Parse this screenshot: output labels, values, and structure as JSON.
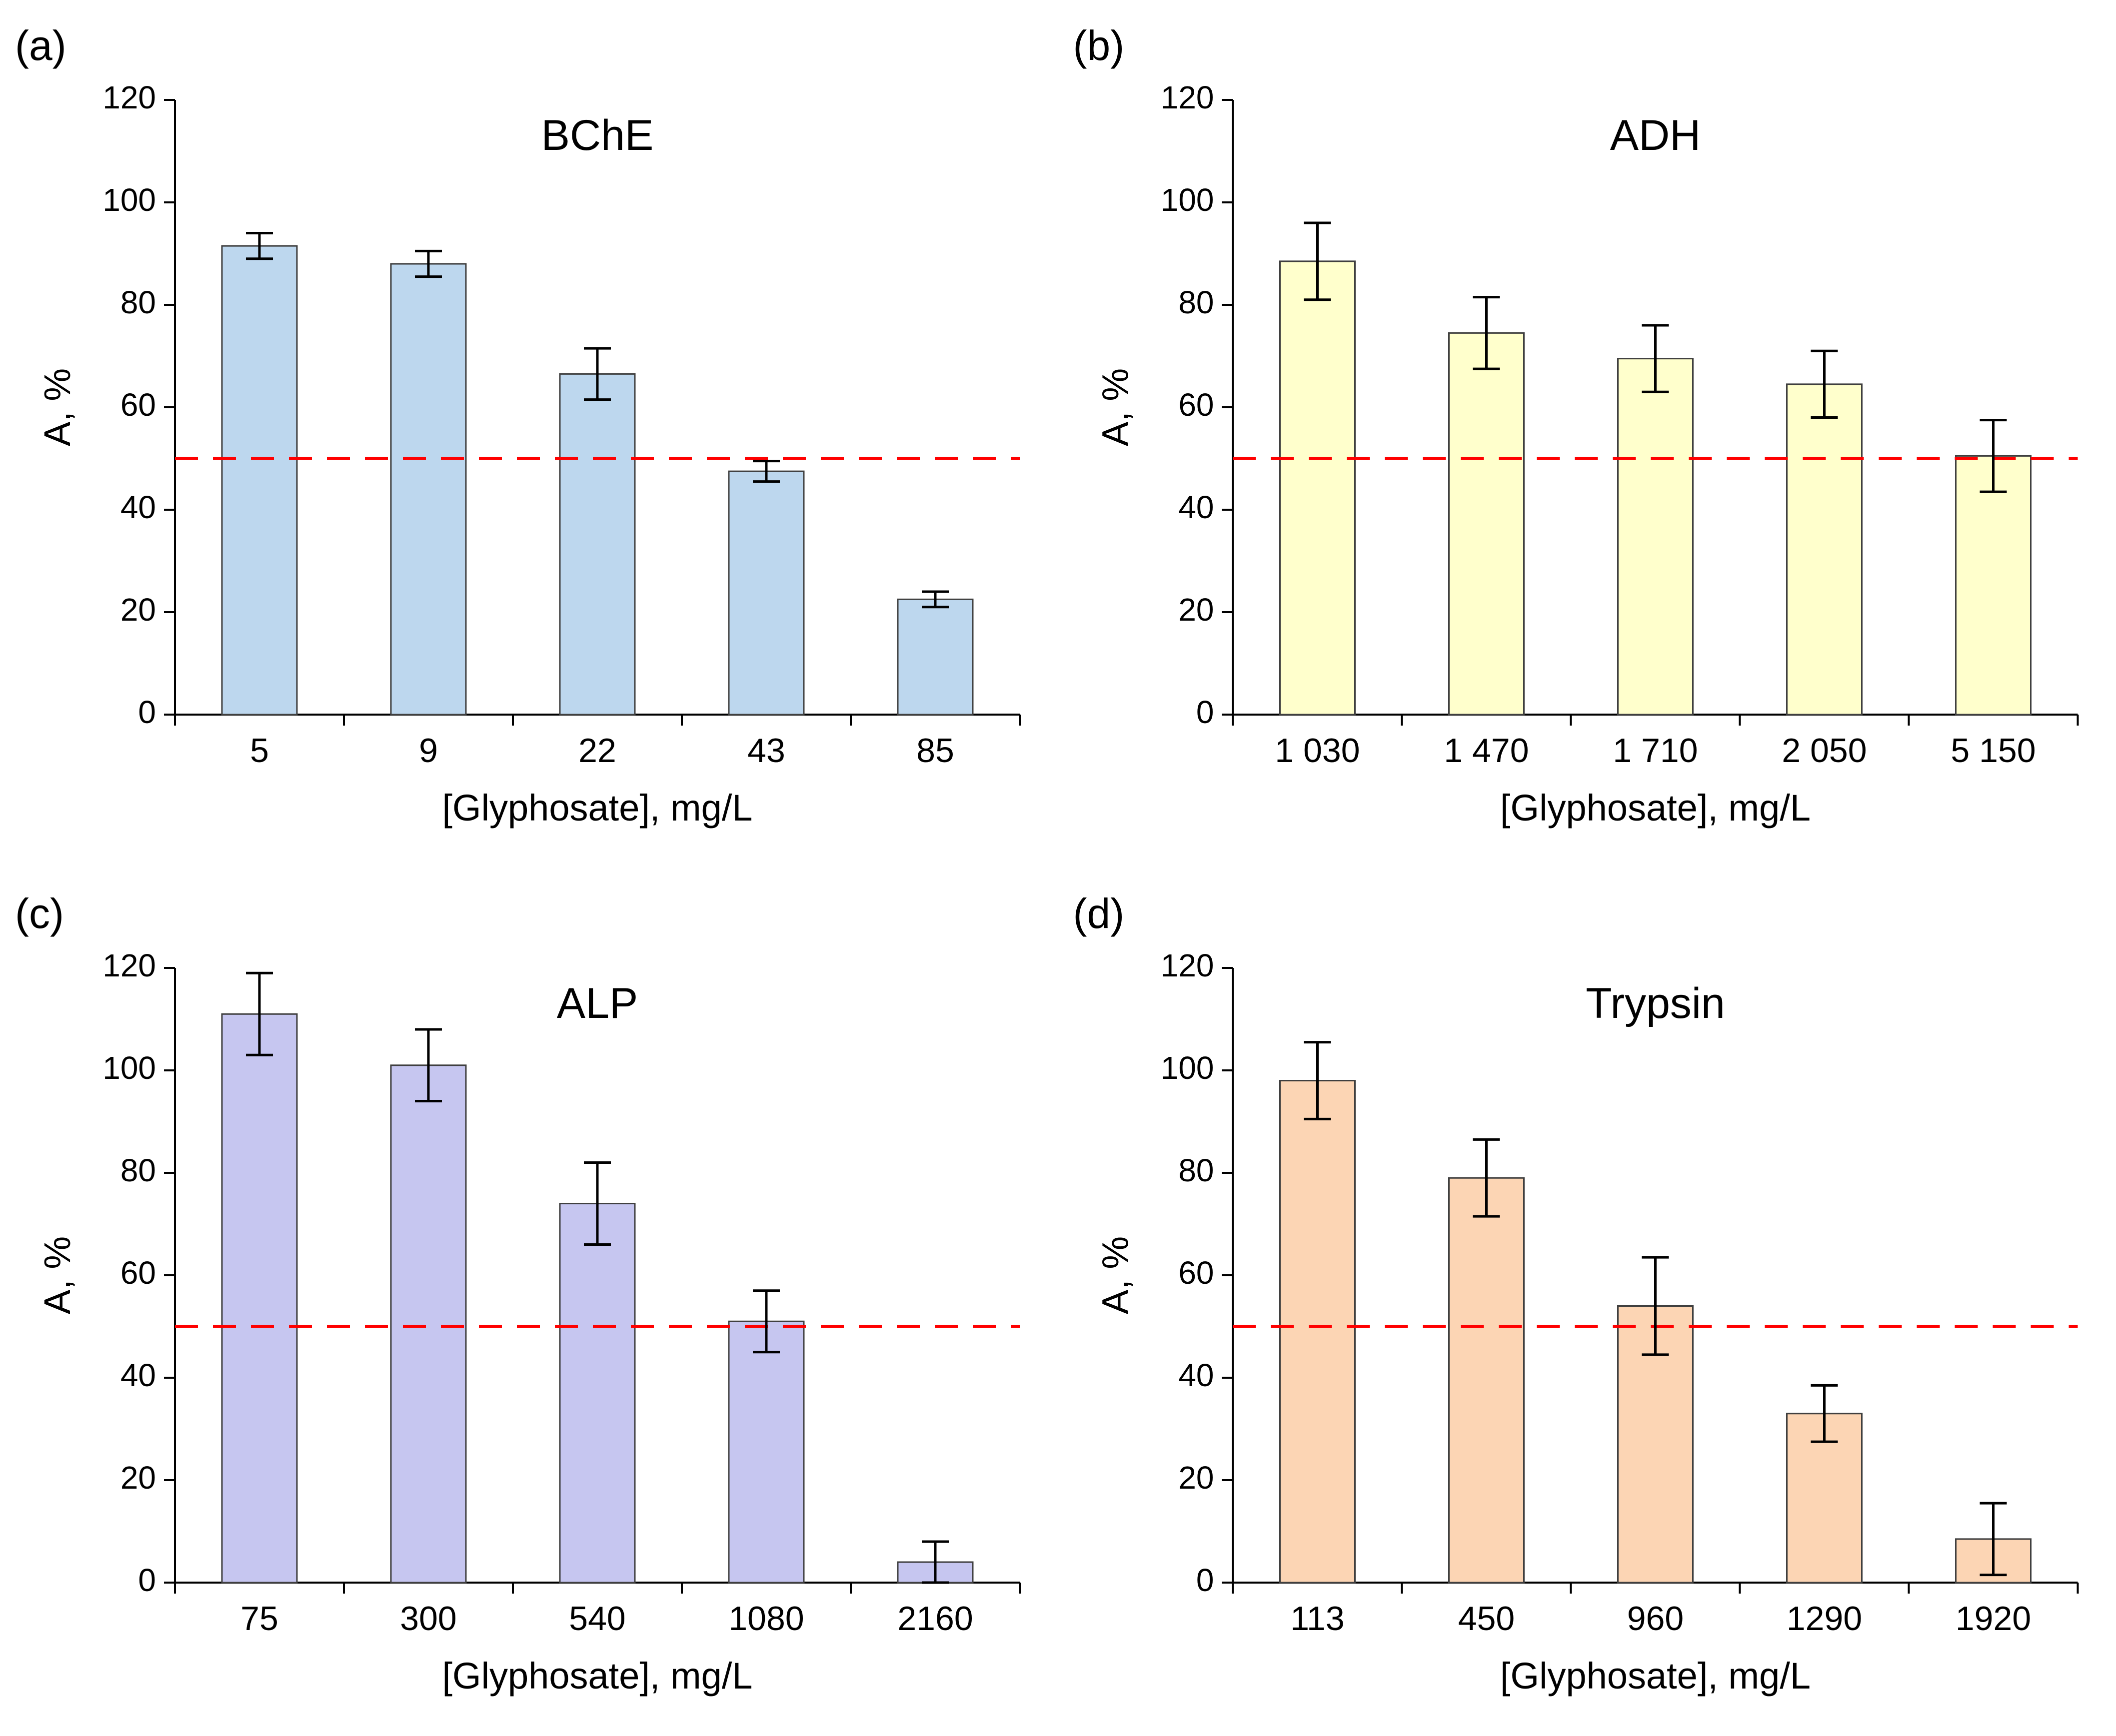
{
  "figure": {
    "background": "#ffffff",
    "accent_title_color": "#2233cc",
    "reference_line_color": "#ff0000",
    "axis_color": "#000000"
  },
  "chart_data": [
    {
      "type": "bar",
      "panel_label": "(a)",
      "title": "BChE",
      "title_color": "#2233cc",
      "categories": [
        "5",
        "9",
        "22",
        "43",
        "85"
      ],
      "values": [
        91.5,
        88,
        66.5,
        47.5,
        22.5
      ],
      "errors": [
        2.5,
        2.5,
        5,
        2,
        1.5
      ],
      "xlabel": "[Glyphosate], mg/L",
      "ylabel": "A, %",
      "ylim": [
        0,
        120
      ],
      "ytick_step": 20,
      "grid": false,
      "legend": "none",
      "bar_fill": "#BDD7EE",
      "bar_stroke": "#3f3f3f",
      "ref_line": {
        "y": 50,
        "color": "#ff0000",
        "style": "dashed"
      }
    },
    {
      "type": "bar",
      "panel_label": "(b)",
      "title": "ADH",
      "title_color": "#2233cc",
      "categories": [
        "1 030",
        "1 470",
        "1 710",
        "2 050",
        "5 150"
      ],
      "values": [
        88.5,
        74.5,
        69.5,
        64.5,
        50.5
      ],
      "errors": [
        7.5,
        7,
        6.5,
        6.5,
        7
      ],
      "xlabel": "[Glyphosate], mg/L",
      "ylabel": "A, %",
      "ylim": [
        0,
        120
      ],
      "ytick_step": 20,
      "grid": false,
      "legend": "none",
      "bar_fill": "#FFFFCC",
      "bar_stroke": "#3f3f3f",
      "ref_line": {
        "y": 50,
        "color": "#ff0000",
        "style": "dashed"
      }
    },
    {
      "type": "bar",
      "panel_label": "(c)",
      "title": "ALP",
      "title_color": "#2233cc",
      "categories": [
        "75",
        "300",
        "540",
        "1080",
        "2160"
      ],
      "values": [
        111,
        101,
        74,
        51,
        4
      ],
      "errors": [
        8,
        7,
        8,
        6,
        4
      ],
      "xlabel": "[Glyphosate], mg/L",
      "ylabel": "A, %",
      "ylim": [
        0,
        120
      ],
      "ytick_step": 20,
      "grid": false,
      "legend": "none",
      "bar_fill": "#C6C6F0",
      "bar_stroke": "#3f3f3f",
      "ref_line": {
        "y": 50,
        "color": "#ff0000",
        "style": "dashed"
      }
    },
    {
      "type": "bar",
      "panel_label": "(d)",
      "title": "Trypsin",
      "title_color": "#2233cc",
      "categories": [
        "113",
        "450",
        "960",
        "1290",
        "1920"
      ],
      "values": [
        98,
        79,
        54,
        33,
        8.5
      ],
      "errors": [
        7.5,
        7.5,
        9.5,
        5.5,
        7
      ],
      "xlabel": "[Glyphosate], mg/L",
      "ylabel": "A, %",
      "ylim": [
        0,
        120
      ],
      "ytick_step": 20,
      "grid": false,
      "legend": "none",
      "bar_fill": "#FCD5B4",
      "bar_stroke": "#3f3f3f",
      "ref_line": {
        "y": 50,
        "color": "#ff0000",
        "style": "dashed"
      }
    }
  ]
}
